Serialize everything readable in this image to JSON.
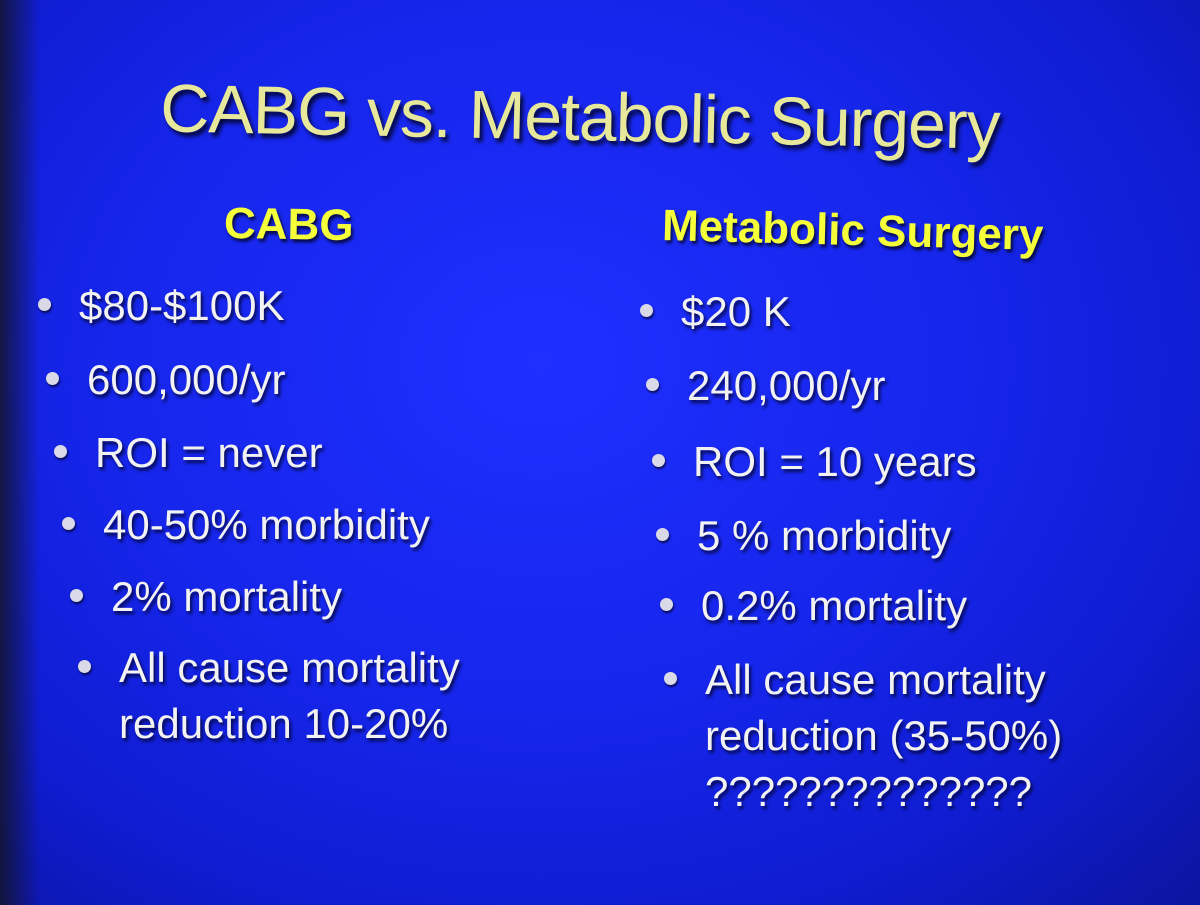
{
  "slide": {
    "title": "CABG vs. Metabolic Surgery",
    "left": {
      "heading": "CABG",
      "bullets": [
        "$80-$100K",
        "600,000/yr",
        "ROI = never",
        "40-50% morbidity",
        "2% mortality",
        "All cause mortality\nreduction 10-20%"
      ]
    },
    "right": {
      "heading": "Metabolic Surgery",
      "bullets": [
        "$20 K",
        "240,000/yr",
        "ROI = 10 years",
        "5 % morbidity",
        "0.2% mortality",
        "All cause mortality\nreduction (35-50%)\n??????????????"
      ]
    },
    "colors": {
      "background": "#1626ec",
      "title": "#e8e89a",
      "heading": "#f4ff3a",
      "bullet_text": "#f2f2f2"
    }
  }
}
